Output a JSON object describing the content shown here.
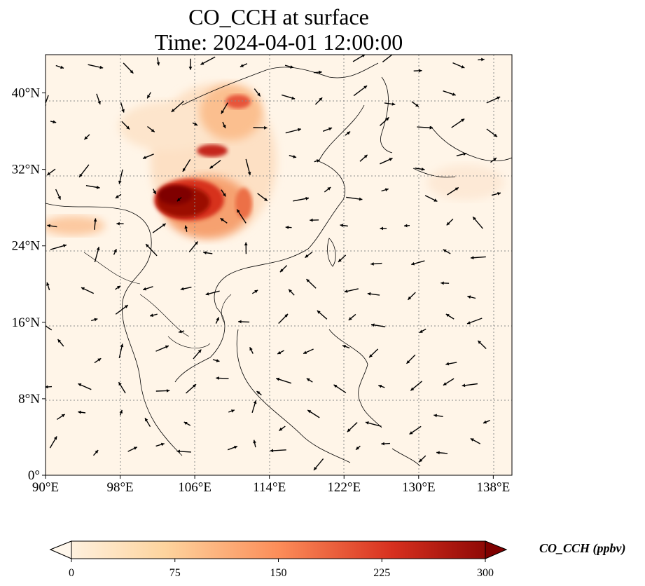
{
  "title": {
    "line1": "CO_CCH at surface",
    "line2": "Time: 2024-04-01 12:00:00"
  },
  "map": {
    "lon_range": [
      90,
      140
    ],
    "lat_range": [
      0,
      44
    ],
    "lon_ticks": [
      {
        "value": 90,
        "label": "90°E"
      },
      {
        "value": 98,
        "label": "98°E"
      },
      {
        "value": 106,
        "label": "106°E"
      },
      {
        "value": 114,
        "label": "114°E"
      },
      {
        "value": 122,
        "label": "122°E"
      },
      {
        "value": 130,
        "label": "130°E"
      },
      {
        "value": 138,
        "label": "138°E"
      }
    ],
    "lat_ticks": [
      {
        "value": 0,
        "label": "0°"
      },
      {
        "value": 8,
        "label": "8°N"
      },
      {
        "value": 16,
        "label": "16°N"
      },
      {
        "value": 24,
        "label": "24°N"
      },
      {
        "value": 32,
        "label": "32°N"
      },
      {
        "value": 40,
        "label": "40°N"
      }
    ],
    "grid": true,
    "background_color": "#fff5e8"
  },
  "colorbar": {
    "title": "CO_CCH (ppbv)",
    "min": 0,
    "max": 300,
    "ticks": [
      {
        "value": 0,
        "label": "0"
      },
      {
        "value": 75,
        "label": "75"
      },
      {
        "value": 150,
        "label": "150"
      },
      {
        "value": 225,
        "label": "225"
      },
      {
        "value": 300,
        "label": "300"
      }
    ],
    "colormap": "OrRd",
    "extend": "both"
  }
}
